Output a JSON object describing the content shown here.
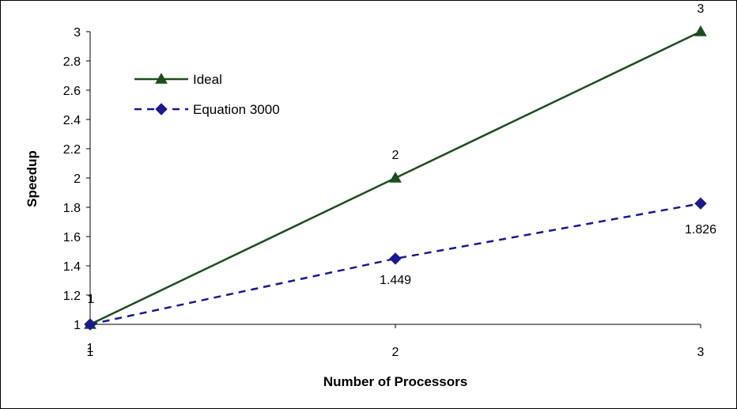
{
  "chart_data": {
    "type": "line",
    "title": "",
    "xlabel": "Number of Processors",
    "ylabel": "Speedup",
    "x": [
      1,
      2,
      3
    ],
    "xticks": [
      "1",
      "2",
      "3"
    ],
    "ylim": [
      1,
      3
    ],
    "yticks": [
      "1",
      "1.2",
      "1.4",
      "1.6",
      "1.8",
      "2",
      "2.2",
      "2.4",
      "2.6",
      "2.8",
      "3"
    ],
    "grid": false,
    "legend_position": "top-left",
    "series": [
      {
        "name": "Ideal",
        "values": [
          1,
          2,
          3
        ],
        "labels": [
          "1",
          "2",
          "3"
        ],
        "color": "#1f4d1f",
        "marker": "triangle",
        "line": "solid"
      },
      {
        "name": "Equation 3000",
        "values": [
          1,
          1.449,
          1.826
        ],
        "labels": [
          "1",
          "1.449",
          "1.826"
        ],
        "color": "#1a1a8c",
        "marker": "diamond",
        "line": "dashed"
      }
    ]
  }
}
